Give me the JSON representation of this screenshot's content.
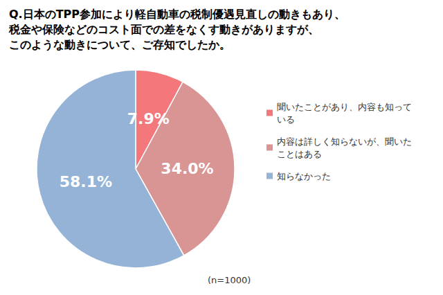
{
  "chart_data": {
    "type": "pie",
    "title": "Q.日本のTPP参加により軽自動車の税制優遇見直しの動きもあり、\n税金や保険などのコスト面での差をなくす動きがありますが、\nこのような動きについて、ご存知でしたか。",
    "categories": [
      "聞いたことがあり、内容も知っている",
      "内容は詳しく知らないが、聞いたことはある",
      "知らなかった"
    ],
    "values": [
      7.9,
      34.0,
      58.1
    ],
    "value_labels": [
      "7.9%",
      "34.0%",
      "58.1%"
    ],
    "colors": [
      "#f4777b",
      "#d99594",
      "#95b3d7"
    ],
    "data_labels": true,
    "legend": "right",
    "annotations": [
      "(n=1000)"
    ]
  }
}
